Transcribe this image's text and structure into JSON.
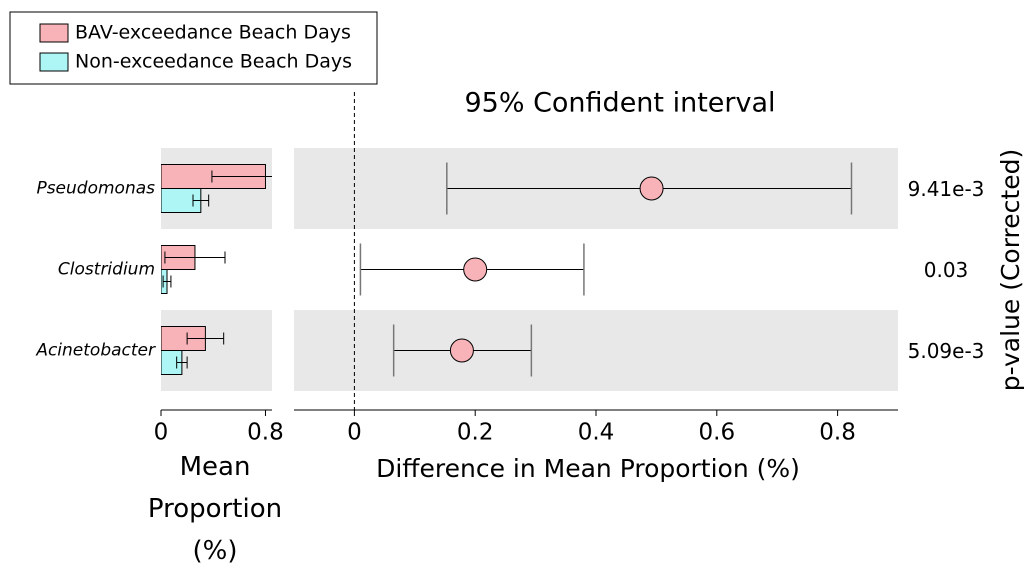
{
  "chart_data": [
    {
      "type": "bar",
      "categories": [
        "Pseudomonas",
        "Clostridium",
        "Acinetobacter"
      ],
      "series": [
        {
          "name": "BAV-exceedance Beach Days",
          "color": "#f7b3b7",
          "values": [
            0.8,
            0.26,
            0.34
          ],
          "errors": [
            0.41,
            0.23,
            0.14
          ]
        },
        {
          "name": "Non-exceedance Beach Days",
          "color": "#aef5f5",
          "values": [
            0.305,
            0.046,
            0.16
          ],
          "errors": [
            0.06,
            0.03,
            0.04
          ]
        }
      ],
      "xlim": [
        0,
        0.85
      ],
      "xticks": [
        0,
        0.8
      ],
      "xlabel": "Mean Proportion (%)"
    },
    {
      "type": "dot",
      "title": "95% Confident interval",
      "values": [
        0.492,
        0.2,
        0.178
      ],
      "ci_low": [
        0.153,
        0.01,
        0.065
      ],
      "ci_high": [
        0.823,
        0.38,
        0.293
      ],
      "color": "#f7b3b7",
      "xlim": [
        -0.1,
        0.9
      ],
      "xticks": [
        0,
        0.2,
        0.4,
        0.6,
        0.8
      ],
      "xlabel": "Difference in Mean Proportion (%)",
      "pvalues": [
        0.00941,
        0.03,
        0.00509
      ],
      "pvalue_labels": [
        "9.41e-3",
        "0.03",
        "5.09e-3"
      ],
      "y2label": "p-value (Corrected)"
    }
  ]
}
